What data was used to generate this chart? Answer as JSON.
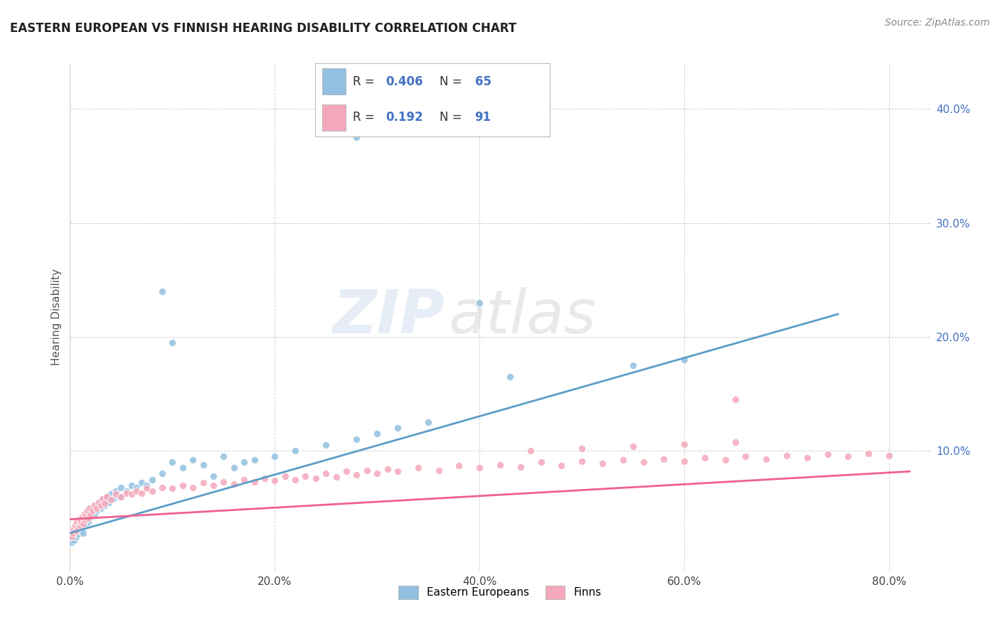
{
  "title": "EASTERN EUROPEAN VS FINNISH HEARING DISABILITY CORRELATION CHART",
  "source_text": "Source: ZipAtlas.com",
  "ylabel": "Hearing Disability",
  "xlim": [
    0.0,
    0.84
  ],
  "ylim": [
    -0.005,
    0.44
  ],
  "xtick_labels": [
    "0.0%",
    "20.0%",
    "40.0%",
    "60.0%",
    "80.0%"
  ],
  "xtick_vals": [
    0.0,
    0.2,
    0.4,
    0.6,
    0.8
  ],
  "ytick_labels": [
    "10.0%",
    "20.0%",
    "30.0%",
    "40.0%"
  ],
  "ytick_vals": [
    0.1,
    0.2,
    0.3,
    0.4
  ],
  "blue_R": 0.406,
  "blue_N": 65,
  "pink_R": 0.192,
  "pink_N": 91,
  "blue_color": "#92c0e0",
  "pink_color": "#f4a8bb",
  "blue_edge": "#7aafd4",
  "pink_edge": "#ee8fa8",
  "blue_line_color": "#5b9dc9",
  "pink_line_color": "#f06090",
  "legend_blue_label": "Eastern Europeans",
  "legend_pink_label": "Finns",
  "background_color": "#ffffff",
  "grid_color": "#cccccc",
  "blue_x": [
    0.001,
    0.002,
    0.003,
    0.004,
    0.005,
    0.006,
    0.007,
    0.008,
    0.009,
    0.01,
    0.011,
    0.012,
    0.013,
    0.014,
    0.015,
    0.016,
    0.017,
    0.018,
    0.019,
    0.02,
    0.022,
    0.024,
    0.025,
    0.026,
    0.028,
    0.03,
    0.032,
    0.034,
    0.036,
    0.038,
    0.04,
    0.042,
    0.045,
    0.048,
    0.05,
    0.055,
    0.06,
    0.065,
    0.07,
    0.075,
    0.08,
    0.09,
    0.1,
    0.11,
    0.12,
    0.13,
    0.14,
    0.15,
    0.16,
    0.17,
    0.18,
    0.2,
    0.22,
    0.25,
    0.28,
    0.3,
    0.32,
    0.35,
    0.43,
    0.55,
    0.6,
    0.28,
    0.09,
    0.1,
    0.4
  ],
  "blue_y": [
    0.025,
    0.02,
    0.028,
    0.022,
    0.03,
    0.025,
    0.032,
    0.027,
    0.035,
    0.03,
    0.033,
    0.038,
    0.028,
    0.042,
    0.035,
    0.04,
    0.045,
    0.038,
    0.05,
    0.042,
    0.048,
    0.045,
    0.052,
    0.048,
    0.055,
    0.05,
    0.058,
    0.052,
    0.06,
    0.055,
    0.062,
    0.058,
    0.065,
    0.06,
    0.068,
    0.065,
    0.07,
    0.068,
    0.072,
    0.07,
    0.075,
    0.08,
    0.09,
    0.085,
    0.092,
    0.088,
    0.078,
    0.095,
    0.085,
    0.09,
    0.092,
    0.095,
    0.1,
    0.105,
    0.11,
    0.115,
    0.12,
    0.125,
    0.165,
    0.175,
    0.18,
    0.375,
    0.24,
    0.195,
    0.23
  ],
  "pink_x": [
    0.001,
    0.002,
    0.003,
    0.004,
    0.005,
    0.006,
    0.007,
    0.008,
    0.009,
    0.01,
    0.011,
    0.012,
    0.013,
    0.014,
    0.015,
    0.016,
    0.017,
    0.018,
    0.019,
    0.02,
    0.022,
    0.024,
    0.026,
    0.028,
    0.03,
    0.032,
    0.034,
    0.036,
    0.04,
    0.045,
    0.05,
    0.055,
    0.06,
    0.065,
    0.07,
    0.075,
    0.08,
    0.09,
    0.1,
    0.11,
    0.12,
    0.13,
    0.14,
    0.15,
    0.16,
    0.17,
    0.18,
    0.19,
    0.2,
    0.21,
    0.22,
    0.23,
    0.24,
    0.25,
    0.26,
    0.27,
    0.28,
    0.29,
    0.3,
    0.31,
    0.32,
    0.34,
    0.36,
    0.38,
    0.4,
    0.42,
    0.44,
    0.46,
    0.48,
    0.5,
    0.52,
    0.54,
    0.56,
    0.58,
    0.6,
    0.62,
    0.64,
    0.66,
    0.68,
    0.7,
    0.72,
    0.74,
    0.76,
    0.78,
    0.8,
    0.45,
    0.5,
    0.55,
    0.6,
    0.65,
    0.65
  ],
  "pink_y": [
    0.03,
    0.025,
    0.028,
    0.032,
    0.035,
    0.03,
    0.038,
    0.033,
    0.04,
    0.035,
    0.038,
    0.042,
    0.036,
    0.045,
    0.04,
    0.043,
    0.048,
    0.041,
    0.05,
    0.044,
    0.048,
    0.052,
    0.05,
    0.055,
    0.052,
    0.058,
    0.054,
    0.06,
    0.057,
    0.062,
    0.06,
    0.063,
    0.062,
    0.065,
    0.063,
    0.067,
    0.065,
    0.068,
    0.067,
    0.07,
    0.068,
    0.072,
    0.07,
    0.073,
    0.071,
    0.075,
    0.073,
    0.076,
    0.074,
    0.078,
    0.075,
    0.078,
    0.076,
    0.08,
    0.077,
    0.082,
    0.079,
    0.083,
    0.08,
    0.084,
    0.082,
    0.085,
    0.083,
    0.087,
    0.085,
    0.088,
    0.086,
    0.09,
    0.087,
    0.091,
    0.089,
    0.092,
    0.09,
    0.093,
    0.091,
    0.094,
    0.092,
    0.095,
    0.093,
    0.096,
    0.094,
    0.097,
    0.095,
    0.098,
    0.096,
    0.1,
    0.102,
    0.104,
    0.106,
    0.108,
    0.145
  ]
}
